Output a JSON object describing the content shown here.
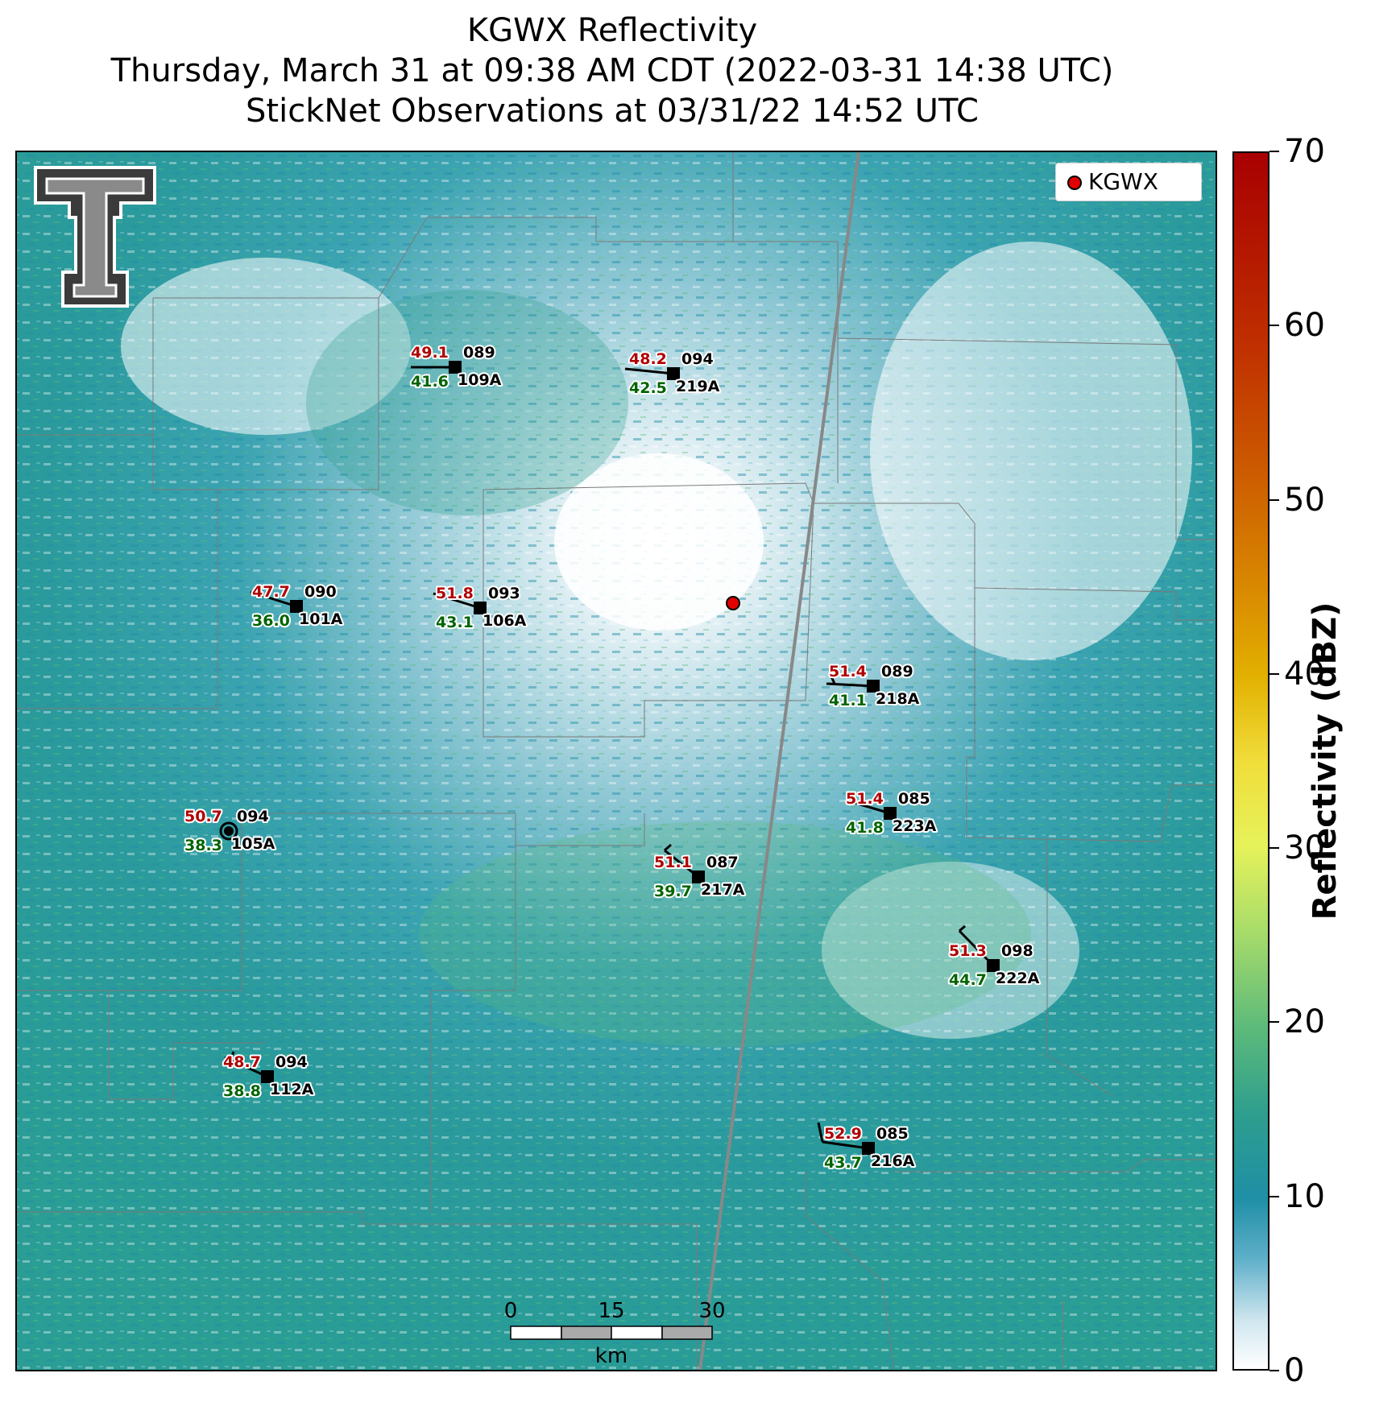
{
  "title": {
    "line1": "KGWX Reflectivity",
    "line2": "Thursday, March 31 at 09:38 AM CDT (2022-03-31 14:38 UTC)",
    "line3": "StickNet Observations at 03/31/22 14:52 UTC"
  },
  "legend": {
    "label": "KGWX",
    "marker_color": "#e00000"
  },
  "radar": {
    "id": "KGWX"
  },
  "colorbar": {
    "label": "Reflectivity (dBZ)",
    "ticks": [
      "0",
      "10",
      "20",
      "30",
      "40",
      "50",
      "60",
      "70"
    ],
    "range": [
      0,
      70
    ]
  },
  "scale_bar": {
    "labels": [
      "0",
      "15",
      "30"
    ],
    "unit": "km"
  },
  "colors": {
    "temperature": "#b00000",
    "dewpoint": "#006400",
    "id_text": "#000000"
  },
  "stations": [
    {
      "id": "109A",
      "temp": "49.1",
      "dew": "41.6",
      "value": "089"
    },
    {
      "id": "219A",
      "temp": "48.2",
      "dew": "42.5",
      "value": "094"
    },
    {
      "id": "101A",
      "temp": "47.7",
      "dew": "36.0",
      "value": "090"
    },
    {
      "id": "106A",
      "temp": "51.8",
      "dew": "43.1",
      "value": "093"
    },
    {
      "id": "218A",
      "temp": "51.4",
      "dew": "41.1",
      "value": "089"
    },
    {
      "id": "223A",
      "temp": "51.4",
      "dew": "41.8",
      "value": "085"
    },
    {
      "id": "105A",
      "temp": "50.7",
      "dew": "38.3",
      "value": "094"
    },
    {
      "id": "217A",
      "temp": "51.1",
      "dew": "39.7",
      "value": "087"
    },
    {
      "id": "222A",
      "temp": "51.3",
      "dew": "44.7",
      "value": "098"
    },
    {
      "id": "112A",
      "temp": "48.7",
      "dew": "38.8",
      "value": "094"
    },
    {
      "id": "216A",
      "temp": "52.9",
      "dew": "43.7",
      "value": "085"
    }
  ]
}
